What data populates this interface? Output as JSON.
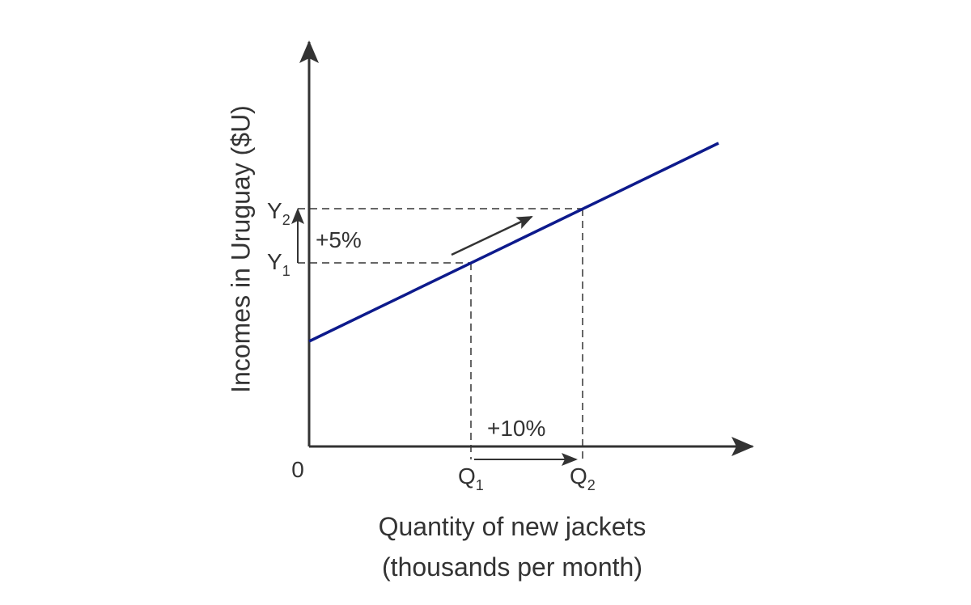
{
  "axes": {
    "y_label": "Incomes in Uruguay ($U)",
    "x_label": [
      "Quantity of new jackets",
      "(thousands per month)"
    ],
    "origin": "0"
  },
  "labels": {
    "y2": {
      "main": "Y",
      "sub": "2"
    },
    "y1": {
      "main": "Y",
      "sub": "1"
    },
    "q1": {
      "main": "Q",
      "sub": "1"
    },
    "q2": {
      "main": "Q",
      "sub": "2"
    }
  },
  "annotations": {
    "y_change": "+5%",
    "q_change": "+10%"
  }
}
